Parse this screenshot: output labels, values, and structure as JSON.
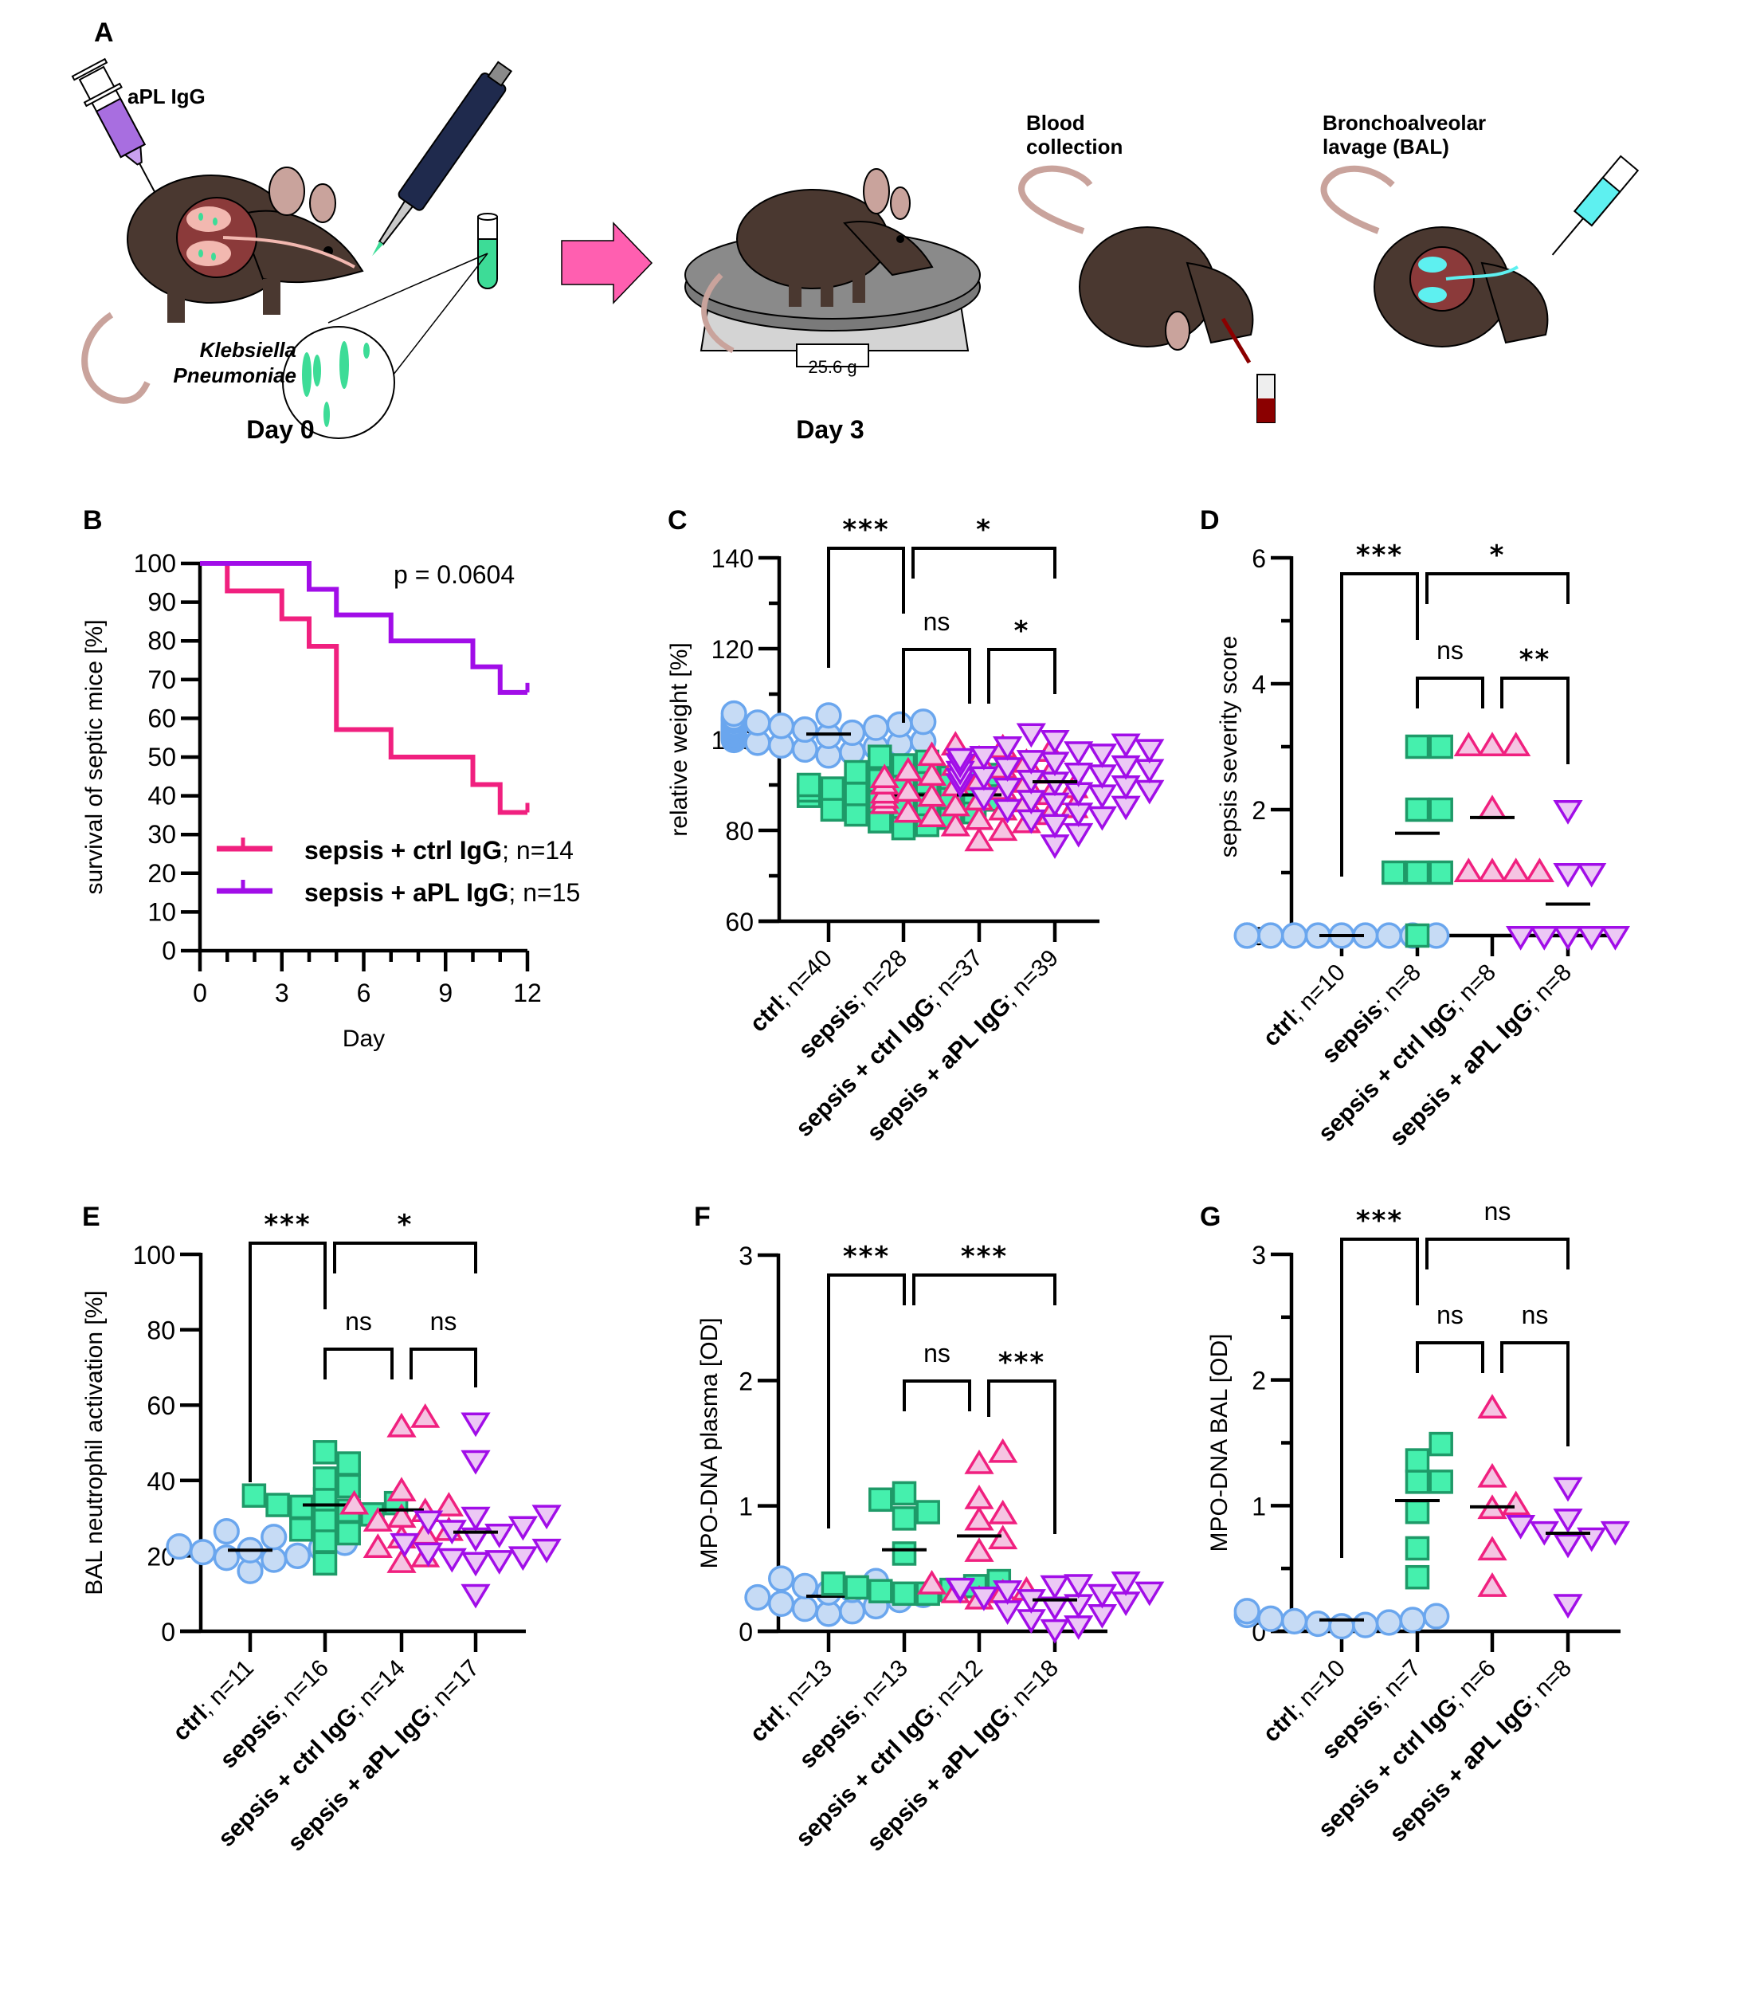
{
  "panel_a": {
    "letter": "A",
    "syringe_label": "aPL IgG",
    "bacteria_label_line1": "Klebsiella",
    "bacteria_label_line2": "Pneumoniae",
    "day0_label": "Day 0",
    "day3_label": "Day 3",
    "scale_readout": "25.6 g",
    "blood_label_line1": "Blood",
    "blood_label_line2": "collection",
    "bal_label_line1": "Bronchoalveolar",
    "bal_label_line2": "lavage (BAL)",
    "colors": {
      "mouse_body": "#4a3830",
      "mouse_skin": "#c9a39c",
      "lung_bg": "#8b3a3a",
      "lung_tissue": "#f2b8b0",
      "bacteria": "#3ddc97",
      "apl_syringe": "#a86ee0",
      "pipette": "#1f2a4d",
      "arrow": "#ff5fb0",
      "bal_fluid": "#5ef0f0",
      "blood": "#8b0000",
      "scale_dark": "#8a8a8a",
      "scale_light": "#d4d4d4"
    }
  },
  "groups": {
    "ctrl": {
      "bold": "ctrl",
      "rest": "; n="
    },
    "sepsis": {
      "bold": "sepsis",
      "rest": "; n="
    },
    "ctrl_igg": {
      "bold": "sepsis + ctrl IgG",
      "rest": "; n="
    },
    "apl_igg": {
      "bold": "sepsis + aPL IgG",
      "rest": "; n="
    }
  },
  "styles": {
    "ctrl": {
      "marker": "circle",
      "fill": "#c6dbf5",
      "stroke": "#6aa6ee"
    },
    "sepsis": {
      "marker": "square",
      "fill": "#45f0ad",
      "stroke": "#1e9a68"
    },
    "ctrl_igg": {
      "marker": "triangle-up",
      "fill": "#f5c4e2",
      "stroke": "#f0207f"
    },
    "apl_igg": {
      "marker": "triangle-down",
      "fill": "#ecc8f5",
      "stroke": "#a10de8"
    }
  },
  "chart_data": [
    {
      "id": "B",
      "letter": "B",
      "type": "line",
      "subtype": "kaplan-meier step",
      "title": "",
      "xlabel": "Day",
      "ylabel": "survival of septic mice [%]",
      "xlim": [
        0,
        12
      ],
      "ylim": [
        0,
        100
      ],
      "xticks": [
        0,
        3,
        6,
        9,
        12
      ],
      "yticks": [
        0,
        10,
        20,
        30,
        40,
        50,
        60,
        70,
        80,
        90,
        100
      ],
      "annotation": "p = 0.0604",
      "legend_position": "bottom-right",
      "series": [
        {
          "name_bold": "sepsis + ctrl IgG",
          "name_rest": "; n=14",
          "color": "#f0207f",
          "x": [
            0,
            1,
            3,
            4,
            5,
            7,
            10,
            11,
            12
          ],
          "y": [
            100,
            92.9,
            85.7,
            78.6,
            57.1,
            50.0,
            42.9,
            35.7,
            35.7
          ]
        },
        {
          "name_bold": "sepsis + aPL IgG",
          "name_rest": "; n=15",
          "color": "#a10de8",
          "x": [
            0,
            4,
            5,
            7,
            10,
            11,
            12
          ],
          "y": [
            100,
            93.3,
            86.7,
            80.0,
            73.3,
            66.7,
            66.7
          ]
        }
      ]
    },
    {
      "id": "C",
      "letter": "C",
      "type": "scatter",
      "subtype": "dot plot with mean",
      "ylabel": "relative weight [%]",
      "ylim": [
        60,
        140
      ],
      "yticks": [
        60,
        80,
        100,
        120,
        140
      ],
      "yminor": [
        70,
        90,
        110,
        130
      ],
      "categories": [
        "ctrl",
        "sepsis",
        "ctrl_igg",
        "apl_igg"
      ],
      "n": [
        40,
        28,
        37,
        39
      ],
      "means": [
        101.2,
        87.8,
        87.8,
        90.7
      ],
      "points": [
        [
          96.5,
          97.2,
          97.8,
          98.3,
          98.7,
          99.0,
          99.3,
          99.6,
          99.9,
          100.2,
          100.4,
          100.6,
          100.8,
          101.0,
          101.1,
          101.2,
          101.3,
          101.5,
          101.6,
          101.8,
          101.9,
          102.0,
          102.2,
          102.3,
          102.5,
          102.6,
          102.8,
          102.9,
          103.0,
          103.2,
          103.3,
          103.5,
          103.7,
          103.9,
          104.1,
          104.3,
          104.6,
          104.9,
          105.3,
          105.7
        ],
        [
          80.5,
          81.2,
          82.0,
          82.8,
          83.5,
          84.0,
          84.6,
          85.2,
          85.8,
          86.3,
          86.8,
          87.2,
          87.6,
          88.0,
          88.4,
          88.8,
          89.2,
          89.6,
          90.0,
          90.5,
          91.0,
          91.6,
          92.2,
          92.8,
          93.5,
          94.3,
          95.1,
          96.2
        ],
        [
          77.5,
          79.8,
          80.8,
          81.5,
          82.2,
          82.8,
          83.3,
          83.8,
          84.3,
          84.8,
          85.2,
          85.7,
          86.1,
          86.5,
          86.9,
          87.3,
          87.7,
          88.0,
          88.4,
          88.8,
          89.2,
          89.6,
          90.0,
          90.4,
          90.9,
          91.4,
          91.9,
          92.4,
          92.9,
          93.5,
          94.1,
          94.8,
          95.5,
          96.3,
          97.2,
          98.0,
          98.6
        ],
        [
          77.0,
          79.5,
          81.5,
          82.5,
          83.2,
          84.0,
          84.8,
          85.5,
          86.2,
          86.8,
          87.4,
          88.0,
          88.5,
          89.0,
          89.5,
          90.0,
          90.4,
          90.8,
          91.2,
          91.6,
          92.0,
          92.4,
          92.8,
          93.2,
          93.6,
          94.0,
          94.4,
          94.8,
          95.2,
          95.6,
          96.0,
          96.5,
          97.0,
          97.5,
          98.0,
          98.6,
          99.2,
          100.0,
          101.5
        ]
      ],
      "comparisons": [
        {
          "from": 0,
          "to": 1,
          "label": "***",
          "level": "top"
        },
        {
          "from": 1,
          "to": 3,
          "label": "*",
          "level": "top"
        },
        {
          "from": 1,
          "to": 2,
          "label": "ns",
          "level": "low"
        },
        {
          "from": 2,
          "to": 3,
          "label": "*",
          "level": "low"
        }
      ]
    },
    {
      "id": "D",
      "letter": "D",
      "type": "scatter",
      "subtype": "dot plot with mean",
      "ylabel": "sepsis severity score",
      "ylim": [
        0,
        6
      ],
      "yticks": [
        0,
        2,
        4,
        6
      ],
      "yminor": [
        1,
        3,
        5
      ],
      "categories": [
        "ctrl",
        "sepsis",
        "ctrl_igg",
        "apl_igg"
      ],
      "n": [
        10,
        8,
        8,
        8
      ],
      "means": [
        0.0,
        1.625,
        1.875,
        0.5
      ],
      "points": [
        [
          0,
          0,
          0,
          0,
          0,
          0,
          0,
          0,
          0,
          0
        ],
        [
          3,
          3,
          2,
          2,
          1,
          1,
          1,
          0
        ],
        [
          3,
          3,
          3,
          2,
          1,
          1,
          1,
          1
        ],
        [
          2,
          1,
          1,
          0,
          0,
          0,
          0,
          0
        ]
      ],
      "comparisons": [
        {
          "from": 0,
          "to": 1,
          "label": "***",
          "level": "top"
        },
        {
          "from": 1,
          "to": 3,
          "label": "*",
          "level": "top"
        },
        {
          "from": 1,
          "to": 2,
          "label": "ns",
          "level": "low"
        },
        {
          "from": 2,
          "to": 3,
          "label": "**",
          "level": "low"
        }
      ]
    },
    {
      "id": "E",
      "letter": "E",
      "type": "scatter",
      "subtype": "dot plot with mean",
      "ylabel": "BAL neutrophil activation [%]",
      "ylim": [
        0,
        100
      ],
      "yticks": [
        0,
        20,
        40,
        60,
        80,
        100
      ],
      "yminor": [],
      "categories": [
        "ctrl",
        "sepsis",
        "ctrl_igg",
        "apl_igg"
      ],
      "n": [
        11,
        16,
        14,
        17
      ],
      "means": [
        21.5,
        33.5,
        32.2,
        26.3
      ],
      "points": [
        [
          16.0,
          19.0,
          19.5,
          20.0,
          21.0,
          21.5,
          22.0,
          22.5,
          23.5,
          25.0,
          26.5
        ],
        [
          18.0,
          24.0,
          26.0,
          27.0,
          29.5,
          31.0,
          32.0,
          33.0,
          33.5,
          34.0,
          35.0,
          36.0,
          38.5,
          40.5,
          44.5,
          47.5
        ],
        [
          18.0,
          19.5,
          22.0,
          24.5,
          25.5,
          26.5,
          29.0,
          30.0,
          31.5,
          33.0,
          33.5,
          37.0,
          54.0,
          56.5
        ],
        [
          10.0,
          18.5,
          19.0,
          19.5,
          20.0,
          21.0,
          22.0,
          23.5,
          25.0,
          26.0,
          27.0,
          28.0,
          29.5,
          30.5,
          31.0,
          45.5,
          55.5
        ]
      ],
      "comparisons": [
        {
          "from": 0,
          "to": 1,
          "label": "***",
          "level": "top"
        },
        {
          "from": 1,
          "to": 3,
          "label": "*",
          "level": "top"
        },
        {
          "from": 1,
          "to": 2,
          "label": "ns",
          "level": "low"
        },
        {
          "from": 2,
          "to": 3,
          "label": "ns",
          "level": "low"
        }
      ]
    },
    {
      "id": "F",
      "letter": "F",
      "type": "scatter",
      "subtype": "dot plot with mean",
      "ylabel": "MPO-DNA plasma [OD]",
      "ylim": [
        0,
        3
      ],
      "yticks": [
        0,
        1,
        2,
        3
      ],
      "yminor": [],
      "categories": [
        "ctrl",
        "sepsis",
        "ctrl_igg",
        "apl_igg"
      ],
      "n": [
        13,
        13,
        12,
        18
      ],
      "means": [
        0.28,
        0.65,
        0.76,
        0.25
      ],
      "points": [
        [
          0.14,
          0.16,
          0.18,
          0.2,
          0.22,
          0.25,
          0.27,
          0.29,
          0.31,
          0.33,
          0.36,
          0.4,
          0.42
        ],
        [
          0.3,
          0.3,
          0.32,
          0.33,
          0.35,
          0.36,
          0.38,
          0.4,
          0.62,
          0.9,
          0.95,
          1.05,
          1.1
        ],
        [
          0.25,
          0.3,
          0.3,
          0.32,
          0.37,
          0.63,
          0.73,
          0.88,
          0.93,
          1.05,
          1.33,
          1.42
        ],
        [
          0.02,
          0.05,
          0.1,
          0.14,
          0.17,
          0.2,
          0.22,
          0.24,
          0.26,
          0.28,
          0.3,
          0.32,
          0.33,
          0.34,
          0.35,
          0.37,
          0.38,
          0.4
        ]
      ],
      "comparisons": [
        {
          "from": 0,
          "to": 1,
          "label": "***",
          "level": "top"
        },
        {
          "from": 1,
          "to": 3,
          "label": "***",
          "level": "top"
        },
        {
          "from": 1,
          "to": 2,
          "label": "ns",
          "level": "low"
        },
        {
          "from": 2,
          "to": 3,
          "label": "***",
          "level": "low"
        }
      ]
    },
    {
      "id": "G",
      "letter": "G",
      "type": "scatter",
      "subtype": "dot plot with mean",
      "ylabel": "MPO-DNA BAL [OD]",
      "ylim": [
        0,
        3
      ],
      "yticks": [
        0,
        1,
        2,
        3
      ],
      "yminor": [
        0.5,
        1.5,
        2.5
      ],
      "categories": [
        "ctrl",
        "sepsis",
        "ctrl_igg",
        "apl_igg"
      ],
      "n": [
        10,
        7,
        6,
        8
      ],
      "means": [
        0.09,
        1.04,
        0.99,
        0.78
      ],
      "points": [
        [
          0.04,
          0.05,
          0.06,
          0.07,
          0.08,
          0.09,
          0.1,
          0.12,
          0.13,
          0.16
        ],
        [
          0.43,
          0.66,
          0.95,
          1.19,
          1.19,
          1.36,
          1.49
        ],
        [
          0.35,
          0.64,
          0.97,
          1.0,
          1.22,
          1.77
        ],
        [
          0.22,
          0.7,
          0.75,
          0.8,
          0.8,
          0.85,
          0.9,
          1.15
        ]
      ],
      "comparisons": [
        {
          "from": 0,
          "to": 1,
          "label": "***",
          "level": "top"
        },
        {
          "from": 1,
          "to": 3,
          "label": "ns",
          "level": "top"
        },
        {
          "from": 1,
          "to": 2,
          "label": "ns",
          "level": "low"
        },
        {
          "from": 2,
          "to": 3,
          "label": "ns",
          "level": "low"
        }
      ]
    }
  ]
}
